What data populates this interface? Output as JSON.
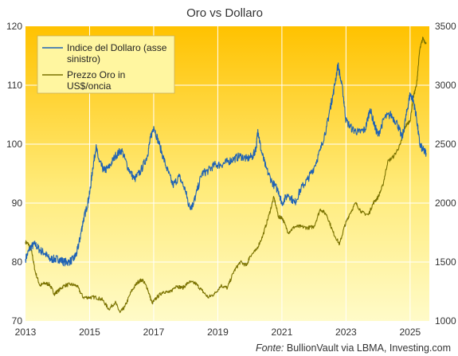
{
  "chart_data": {
    "type": "line",
    "title": "Oro vs Dollaro",
    "source_prefix": "Fonte: ",
    "source_text": "BullionVault via LBMA, Investing.com",
    "xlabel": "",
    "x_ticks": [
      "2013",
      "2015",
      "2017",
      "2019",
      "2021",
      "2023",
      "2025"
    ],
    "xlim": [
      2013.0,
      2025.6
    ],
    "y_left": {
      "label": "",
      "range": [
        70,
        120
      ],
      "ticks": [
        "70",
        "80",
        "90",
        "100",
        "110",
        "120"
      ]
    },
    "y_right": {
      "label": "",
      "range": [
        1000,
        3500
      ],
      "ticks": [
        "1000",
        "1500",
        "2000",
        "2500",
        "3000",
        "3500"
      ]
    },
    "legend_position": "top-left",
    "grid": true,
    "colors": {
      "background_top": "#FFC200",
      "background_bottom": "#FFFBC8",
      "dollar": "#1F62B4",
      "gold": "#7A7200",
      "grid": "#FFFFFF"
    },
    "series": [
      {
        "name": "Indice del Dollaro (asse sinistro)",
        "legend_lines": [
          "Indice del Dollaro (asse",
          "sinistro)"
        ],
        "axis": "left",
        "x": [
          2013.0,
          2013.15,
          2013.3,
          2013.45,
          2013.6,
          2013.75,
          2013.9,
          2014.05,
          2014.2,
          2014.35,
          2014.5,
          2014.6,
          2014.7,
          2014.8,
          2014.9,
          2015.0,
          2015.1,
          2015.2,
          2015.3,
          2015.45,
          2015.6,
          2015.8,
          2016.0,
          2016.2,
          2016.4,
          2016.6,
          2016.8,
          2016.9,
          2017.0,
          2017.2,
          2017.4,
          2017.6,
          2017.8,
          2018.0,
          2018.1,
          2018.2,
          2018.3,
          2018.5,
          2018.7,
          2018.9,
          2019.1,
          2019.3,
          2019.5,
          2019.7,
          2019.9,
          2020.1,
          2020.2,
          2020.25,
          2020.35,
          2020.5,
          2020.7,
          2020.9,
          2021.0,
          2021.2,
          2021.4,
          2021.6,
          2021.8,
          2022.0,
          2022.2,
          2022.4,
          2022.5,
          2022.6,
          2022.75,
          2022.9,
          2023.0,
          2023.2,
          2023.4,
          2023.6,
          2023.75,
          2023.9,
          2024.0,
          2024.2,
          2024.4,
          2024.6,
          2024.75,
          2024.9,
          2025.0,
          2025.1,
          2025.2,
          2025.3,
          2025.4,
          2025.5
        ],
        "values": [
          80.5,
          82.5,
          83.0,
          82.0,
          81.5,
          80.5,
          80.5,
          80.5,
          80.0,
          80.0,
          80.5,
          81.5,
          84.0,
          87.0,
          89.0,
          91.5,
          96.0,
          99.5,
          97.0,
          95.5,
          96.0,
          98.0,
          99.0,
          96.0,
          94.0,
          95.5,
          98.0,
          101.0,
          103.0,
          99.5,
          96.0,
          93.0,
          94.5,
          92.0,
          89.5,
          89.5,
          91.0,
          95.0,
          95.5,
          96.5,
          96.5,
          97.0,
          97.5,
          98.0,
          97.5,
          98.0,
          99.5,
          102.5,
          99.0,
          96.0,
          93.5,
          92.0,
          90.0,
          91.5,
          90.0,
          92.5,
          94.0,
          96.0,
          99.0,
          103.0,
          106.0,
          108.5,
          113.5,
          109.0,
          104.0,
          102.5,
          102.0,
          102.5,
          106.0,
          103.0,
          101.5,
          104.5,
          105.0,
          103.5,
          101.0,
          105.5,
          108.5,
          107.5,
          104.5,
          100.0,
          99.0,
          98.5
        ]
      },
      {
        "name": "Prezzo Oro in US$/oncia",
        "legend_lines": [
          "Prezzo Oro in",
          "US$/oncia"
        ],
        "axis": "right",
        "x": [
          2013.0,
          2013.1,
          2013.2,
          2013.3,
          2013.45,
          2013.6,
          2013.75,
          2013.9,
          2014.0,
          2014.2,
          2014.4,
          2014.6,
          2014.8,
          2015.0,
          2015.2,
          2015.4,
          2015.6,
          2015.8,
          2015.95,
          2016.1,
          2016.3,
          2016.5,
          2016.65,
          2016.8,
          2016.95,
          2017.1,
          2017.3,
          2017.5,
          2017.7,
          2017.9,
          2018.1,
          2018.3,
          2018.5,
          2018.7,
          2018.9,
          2019.1,
          2019.3,
          2019.5,
          2019.7,
          2019.9,
          2020.0,
          2020.2,
          2020.4,
          2020.6,
          2020.75,
          2020.9,
          2021.0,
          2021.2,
          2021.4,
          2021.6,
          2021.8,
          2022.0,
          2022.2,
          2022.4,
          2022.6,
          2022.8,
          2022.95,
          2023.1,
          2023.3,
          2023.5,
          2023.7,
          2023.85,
          2024.0,
          2024.15,
          2024.3,
          2024.5,
          2024.7,
          2024.85,
          2025.0,
          2025.1,
          2025.2,
          2025.3,
          2025.4,
          2025.5
        ],
        "values": [
          1670,
          1650,
          1580,
          1420,
          1300,
          1320,
          1310,
          1230,
          1250,
          1300,
          1310,
          1300,
          1200,
          1200,
          1200,
          1180,
          1100,
          1160,
          1070,
          1120,
          1250,
          1330,
          1350,
          1280,
          1150,
          1200,
          1250,
          1240,
          1300,
          1280,
          1330,
          1320,
          1260,
          1200,
          1230,
          1300,
          1280,
          1420,
          1500,
          1470,
          1550,
          1600,
          1720,
          1900,
          2050,
          1880,
          1880,
          1750,
          1800,
          1800,
          1790,
          1800,
          1950,
          1900,
          1750,
          1650,
          1800,
          1900,
          2000,
          1920,
          1900,
          2000,
          2050,
          2150,
          2350,
          2400,
          2500,
          2650,
          2700,
          2900,
          3000,
          3300,
          3400,
          3350
        ]
      }
    ]
  }
}
